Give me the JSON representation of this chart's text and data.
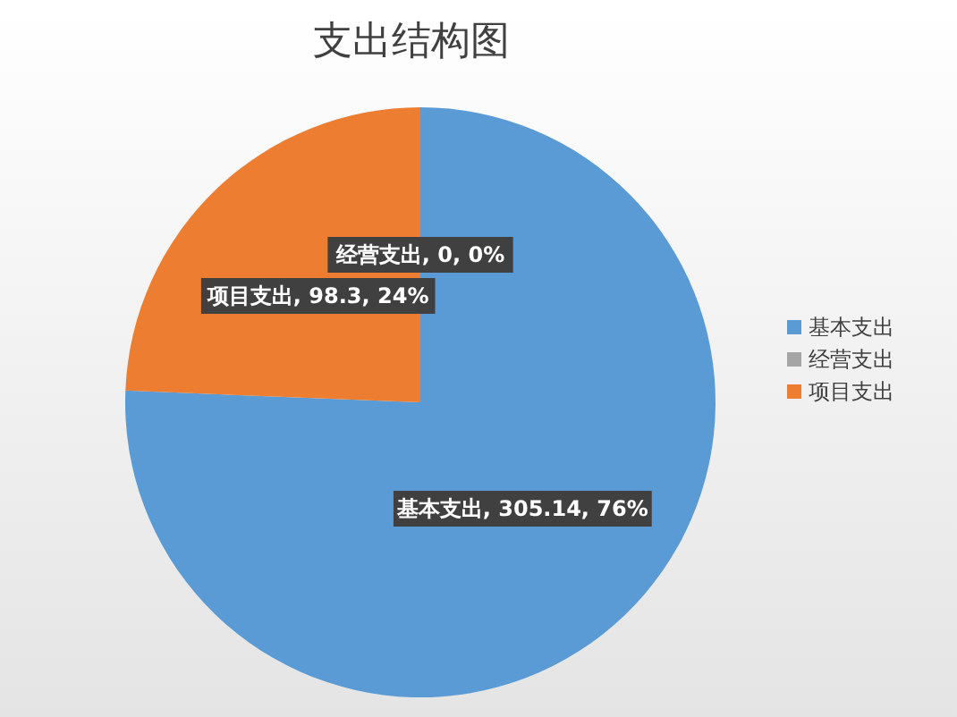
{
  "chart_data": {
    "type": "pie",
    "title": "支出结构图",
    "categories": [
      "基本支出",
      "项目支出",
      "经营支出"
    ],
    "values": [
      305.14,
      98.3,
      0
    ],
    "colors": [
      "#5b9bd5",
      "#ed7d31",
      "#a5a5a5"
    ],
    "value_labels": [
      "基本支出, 305.14, 76%",
      "项目支出, 98.3, 24%",
      "经营支出, 0, 0%"
    ],
    "legend": "right"
  }
}
